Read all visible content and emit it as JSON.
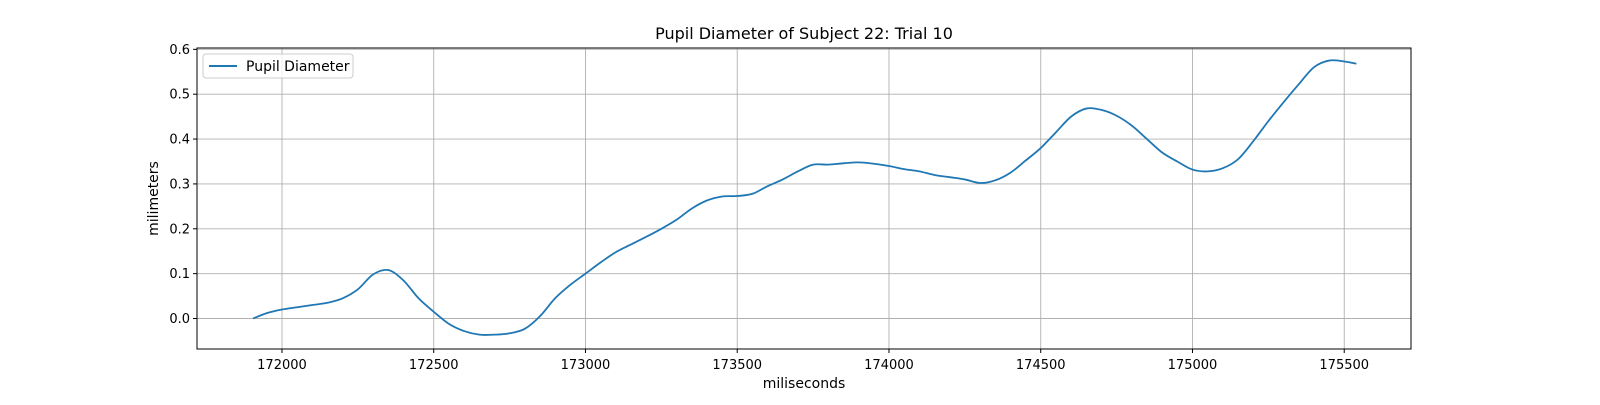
{
  "chart_data": {
    "type": "line",
    "title": "Pupil Diameter of Subject 22: Trial 10",
    "xlabel": "miliseconds",
    "ylabel": "milimeters",
    "xlim": [
      171720,
      175720
    ],
    "ylim": [
      -0.068,
      0.603
    ],
    "xticks": [
      172000,
      172500,
      173000,
      173500,
      174000,
      174500,
      175000,
      175500
    ],
    "xtick_labels": [
      "172000",
      "172500",
      "173000",
      "173500",
      "174000",
      "174500",
      "175000",
      "175500"
    ],
    "yticks": [
      0.0,
      0.1,
      0.2,
      0.3,
      0.4,
      0.5,
      0.6
    ],
    "ytick_labels": [
      "0.0",
      "0.1",
      "0.2",
      "0.3",
      "0.4",
      "0.5",
      "0.6"
    ],
    "grid": true,
    "legend": {
      "position": "top-left",
      "entries": [
        "Pupil Diameter"
      ]
    },
    "series": [
      {
        "name": "Pupil Diameter",
        "color": "#1f77b4",
        "x": [
          171905,
          171950,
          172000,
          172050,
          172100,
          172150,
          172200,
          172250,
          172300,
          172350,
          172400,
          172450,
          172500,
          172550,
          172600,
          172650,
          172700,
          172750,
          172800,
          172850,
          172900,
          172950,
          173000,
          173050,
          173100,
          173150,
          173200,
          173250,
          173300,
          173350,
          173400,
          173450,
          173500,
          173550,
          173600,
          173650,
          173700,
          173750,
          173800,
          173850,
          173900,
          173950,
          174000,
          174050,
          174100,
          174150,
          174200,
          174250,
          174300,
          174350,
          174400,
          174450,
          174500,
          174550,
          174600,
          174650,
          174700,
          174750,
          174800,
          174850,
          174900,
          174950,
          175000,
          175050,
          175100,
          175150,
          175200,
          175250,
          175300,
          175350,
          175400,
          175450,
          175500,
          175540
        ],
        "y": [
          0.0,
          0.012,
          0.02,
          0.025,
          0.03,
          0.035,
          0.045,
          0.065,
          0.098,
          0.108,
          0.085,
          0.045,
          0.015,
          -0.012,
          -0.028,
          -0.036,
          -0.036,
          -0.033,
          -0.023,
          0.005,
          0.045,
          0.075,
          0.1,
          0.125,
          0.148,
          0.165,
          0.182,
          0.2,
          0.22,
          0.245,
          0.263,
          0.272,
          0.273,
          0.278,
          0.295,
          0.31,
          0.328,
          0.343,
          0.343,
          0.346,
          0.348,
          0.345,
          0.34,
          0.333,
          0.328,
          0.32,
          0.315,
          0.31,
          0.302,
          0.308,
          0.325,
          0.352,
          0.38,
          0.415,
          0.45,
          0.468,
          0.465,
          0.452,
          0.43,
          0.4,
          0.37,
          0.35,
          0.332,
          0.328,
          0.335,
          0.355,
          0.395,
          0.44,
          0.482,
          0.522,
          0.56,
          0.575,
          0.573,
          0.568
        ]
      }
    ]
  }
}
